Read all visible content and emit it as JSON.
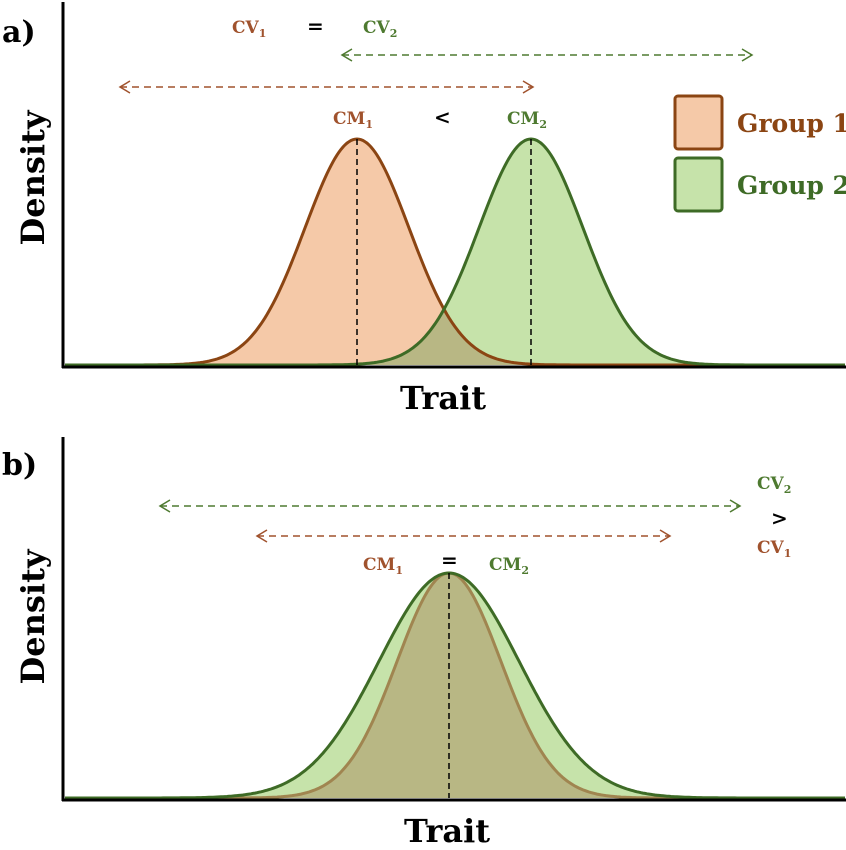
{
  "colors": {
    "group1_line": "#8B4513",
    "group1_fill": "#F5C9A8",
    "group2_line": "#3E6B26",
    "group2_fill": "#C6E3AA",
    "overlap_fill": "#B8B784",
    "arrow1": "#A0522D",
    "arrow2": "#4E7A30",
    "axis": "#000000"
  },
  "legend": [
    {
      "label": "Group 1",
      "color_key": "group1"
    },
    {
      "label": "Group 2",
      "color_key": "group2"
    }
  ],
  "panels": [
    {
      "label": "a)",
      "xlabel": "Trait",
      "ylabel": "Density",
      "cv": {
        "left": "CV",
        "left_sub": "1",
        "op": "=",
        "right": "CV",
        "right_sub": "2"
      },
      "cm": {
        "left": "CM",
        "left_sub": "1",
        "op": "<",
        "right": "CM",
        "right_sub": "2"
      },
      "curves": [
        {
          "group": "Group 1",
          "mean": 0.0,
          "sd": 1.0
        },
        {
          "group": "Group 2",
          "mean": 1.0,
          "sd": 1.0
        }
      ]
    },
    {
      "label": "b)",
      "xlabel": "Trait",
      "ylabel": "Density",
      "cv": {
        "top": "CV",
        "top_sub": "2",
        "op": ">",
        "bottom": "CV",
        "bottom_sub": "1"
      },
      "cm": {
        "left": "CM",
        "left_sub": "1",
        "op": "=",
        "right": "CM",
        "right_sub": "2"
      },
      "curves": [
        {
          "group": "Group 1",
          "mean": 0.0,
          "sd": 1.0
        },
        {
          "group": "Group 2",
          "mean": 0.0,
          "sd": 1.35
        }
      ]
    }
  ]
}
